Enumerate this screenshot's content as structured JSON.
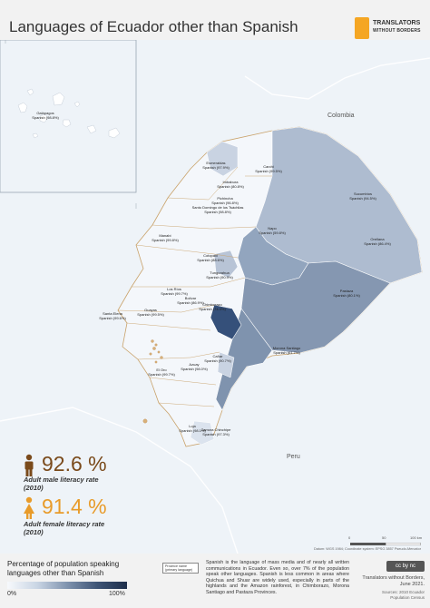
{
  "header": {
    "title": "Languages of Ecuador other than Spanish"
  },
  "brand": {
    "line1": "TRANSLATORS",
    "line2": "WITHOUT BORDERS",
    "color": "#f5a623"
  },
  "map": {
    "neighbors": {
      "north": "Colombia",
      "south": "Peru"
    },
    "provinces": [
      {
        "name": "Galápagos",
        "primary": "Spanish (98.8%)",
        "share": 0.01
      },
      {
        "name": "Carchi",
        "primary": "Spanish (99.5%)",
        "share": 0.005
      },
      {
        "name": "Esmeraldas",
        "primary": "Spanish (97.9%)",
        "share": 0.02
      },
      {
        "name": "Imbabura",
        "primary": "Spanish (80.8%)",
        "share": 0.19
      },
      {
        "name": "Sucumbíos",
        "primary": "Spanish (94.5%)",
        "share": 0.06
      },
      {
        "name": "Pichincha",
        "primary": "Spanish (96.8%)",
        "share": 0.03
      },
      {
        "name": "Santo Domingo de los Tsáchilas",
        "primary": "Spanish (98.8%)",
        "share": 0.01
      },
      {
        "name": "Napo",
        "primary": "Spanish (59.8%)",
        "share": 0.4
      },
      {
        "name": "Orellana",
        "primary": "Spanish (86.4%)",
        "share": 0.14
      },
      {
        "name": "Manabí",
        "primary": "Spanish (99.8%)",
        "share": 0.002
      },
      {
        "name": "Cotopaxi",
        "primary": "Spanish (88.6%)",
        "share": 0.11
      },
      {
        "name": "Tungurahua",
        "primary": "Spanish (90.9%)",
        "share": 0.09
      },
      {
        "name": "Pastaza",
        "primary": "Spanish (80.1%)",
        "share": 0.2
      },
      {
        "name": "Los Ríos",
        "primary": "Spanish (99.7%)",
        "share": 0.003
      },
      {
        "name": "Bolívar",
        "primary": "Spanish (86.9%)",
        "share": 0.13
      },
      {
        "name": "Chimborazo",
        "primary": "Spanish (74.4%)",
        "share": 0.26
      },
      {
        "name": "Santa Elena",
        "primary": "Spanish (99.6%)",
        "share": 0.004
      },
      {
        "name": "Guayas",
        "primary": "Spanish (99.5%)",
        "share": 0.005
      },
      {
        "name": "Morona Santiago",
        "primary": "Spanish (61.7%)",
        "share": 0.38
      },
      {
        "name": "Cañar",
        "primary": "Spanish (90.7%)",
        "share": 0.09
      },
      {
        "name": "Azuay",
        "primary": "Spanish (98.0%)",
        "share": 0.02
      },
      {
        "name": "El Oro",
        "primary": "Spanish (99.7%)",
        "share": 0.003
      },
      {
        "name": "Loja",
        "primary": "Spanish (98.1%)",
        "share": 0.02
      },
      {
        "name": "Zamora Chinchipe",
        "primary": "Spanish (97.3%)",
        "share": 0.03
      }
    ],
    "scale": {
      "ticks": [
        "0",
        "50",
        "100 km"
      ]
    },
    "source": "Datum: WGS 1984; Coordinate system: EPSG 3857 Pseudo-Mercator"
  },
  "stats": {
    "male": {
      "value": "92.6 %",
      "caption_line1": "Adult male literacy rate",
      "caption_line2": "(2010)",
      "color": "#7a4a1b"
    },
    "female": {
      "value": "91.4 %",
      "caption_line1": "Adult female literacy rate",
      "caption_line2": "(2010)",
      "color": "#e89b2a"
    }
  },
  "legend": {
    "title_line1": "Percentage of population speaking",
    "title_line2": "languages other than Spanish",
    "min_label": "0%",
    "max_label": "100%",
    "key_line1": "Province name",
    "key_line2": "(primary language)"
  },
  "footer": {
    "description": "Spanish is the language of mass media and of nearly all written communications in Ecuador. Even so, over 7% of the population speak other languages. Spanish is less common in areas where Quichua and Shuar are widely used, especially in parts of the highlands and the Amazon rainforest, in Chimborazo, Morona Santiago and Pastaza Provinces.",
    "license": "cc by nc",
    "credit_line1": "Translators without Borders,",
    "credit_line2": "June 2021.",
    "sources_line1": "Sources: 2010 Ecuador",
    "sources_line2": "Population Census"
  }
}
